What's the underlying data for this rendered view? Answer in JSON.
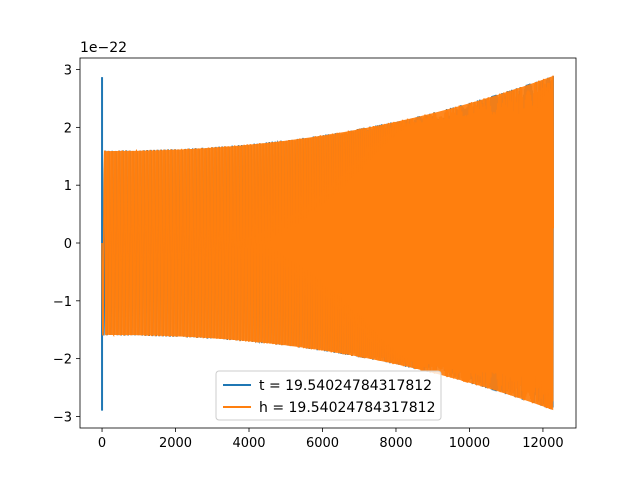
{
  "chart_data": {
    "type": "line",
    "title": "",
    "xlabel": "",
    "ylabel": "",
    "y_offset_text": "1e−22",
    "xlim": [
      -600,
      12900
    ],
    "ylim": [
      -3.2,
      3.2
    ],
    "x_ticks": [
      0,
      2000,
      4000,
      6000,
      8000,
      10000,
      12000
    ],
    "x_tick_labels": [
      "0",
      "2000",
      "4000",
      "6000",
      "8000",
      "10000",
      "12000"
    ],
    "y_ticks": [
      -3,
      -2,
      -1,
      0,
      1,
      2,
      3
    ],
    "y_tick_labels": [
      "−3",
      "−2",
      "−1",
      "0",
      "1",
      "2",
      "3"
    ],
    "grid": false,
    "legend_position": "lower center",
    "x_max": 12280,
    "series": [
      {
        "name": "t = 19.54024784317812",
        "color": "#1f77b4",
        "initial_spike": {
          "x": 0,
          "min": -2.9,
          "max": 2.87
        },
        "envelope": {
          "start": 1.6,
          "end": 2.9
        }
      },
      {
        "name": "h = 19.54024784317812",
        "color": "#ff7f0e",
        "envelope": {
          "start": 1.6,
          "end": 2.9
        }
      }
    ]
  }
}
